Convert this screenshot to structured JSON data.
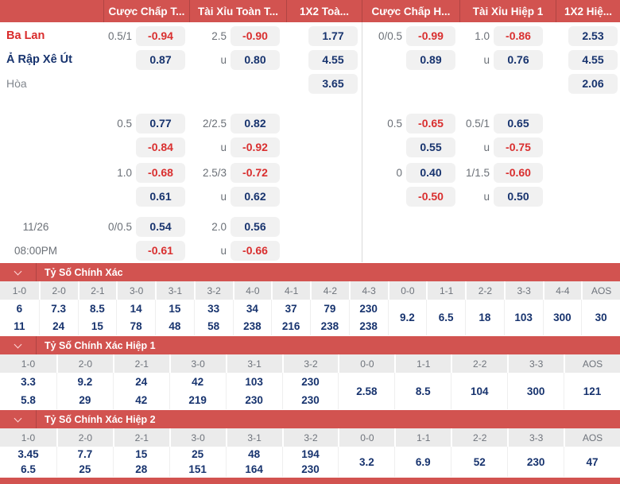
{
  "colors": {
    "accent_red": "#d25350",
    "odd_negative_red": "#d92f2f",
    "odd_positive_navy": "#17336e",
    "pill_background": "#f1f1f1"
  },
  "odds_header": {
    "columns": [
      {
        "label": "Cược Chấp T..."
      },
      {
        "label": "Tài Xỉu Toàn T..."
      },
      {
        "label": "1X2 Toà..."
      },
      {
        "label": "Cược Chấp H..."
      },
      {
        "label": "Tài Xỉu Hiệp 1"
      },
      {
        "label": "1X2 Hiệ..."
      }
    ]
  },
  "odds_rows": [
    {
      "gap": 2,
      "label": "Ba Lan",
      "labelType": "home",
      "cells": [
        {
          "line": "0.5/1",
          "odd": "-0.94"
        },
        {
          "line": "2.5",
          "odd": "-0.90"
        },
        {
          "odd": "1.77"
        },
        {
          "line": "0/0.5",
          "odd": "-0.99"
        },
        {
          "line": "1.0",
          "odd": "-0.86"
        },
        {
          "odd": "2.53"
        }
      ]
    },
    {
      "gap": 0,
      "label": "Ả Rập Xê Út",
      "labelType": "away",
      "cells": [
        {
          "odd": "0.87"
        },
        {
          "line": "u",
          "odd": "0.80"
        },
        {
          "odd": "4.55"
        },
        {
          "odd": "0.89"
        },
        {
          "line": "u",
          "odd": "0.76"
        },
        {
          "odd": "4.55"
        }
      ]
    },
    {
      "gap": 0,
      "label": "Hòa",
      "labelType": "draw",
      "cells": [
        {},
        {},
        {
          "odd": "3.65"
        },
        {},
        {},
        {
          "odd": "2.06"
        }
      ]
    },
    {
      "gap": 20,
      "label": "",
      "labelType": "none",
      "cells": [
        {
          "line": "0.5",
          "odd": "0.77"
        },
        {
          "line": "2/2.5",
          "odd": "0.82"
        },
        {},
        {
          "line": "0.5",
          "odd": "-0.65"
        },
        {
          "line": "0.5/1",
          "odd": "0.65"
        },
        {}
      ]
    },
    {
      "gap": 0,
      "label": "",
      "labelType": "none",
      "cells": [
        {
          "odd": "-0.84"
        },
        {
          "line": "u",
          "odd": "-0.92"
        },
        {},
        {
          "odd": "0.55"
        },
        {
          "line": "u",
          "odd": "-0.75"
        },
        {}
      ]
    },
    {
      "gap": 2,
      "label": "",
      "labelType": "none",
      "cells": [
        {
          "line": "1.0",
          "odd": "-0.68"
        },
        {
          "line": "2.5/3",
          "odd": "-0.72"
        },
        {},
        {
          "line": "0",
          "odd": "0.40"
        },
        {
          "line": "1/1.5",
          "odd": "-0.60"
        },
        {}
      ]
    },
    {
      "gap": 0,
      "label": "",
      "labelType": "none",
      "cells": [
        {
          "odd": "0.61"
        },
        {
          "line": "u",
          "odd": "0.62"
        },
        {},
        {
          "odd": "-0.50"
        },
        {
          "line": "u",
          "odd": "0.50"
        },
        {}
      ]
    },
    {
      "gap": 8,
      "label": "11/26",
      "labelType": "date",
      "cells": [
        {
          "line": "0/0.5",
          "odd": "0.54"
        },
        {
          "line": "2.0",
          "odd": "0.56"
        },
        {},
        {},
        {},
        {}
      ]
    },
    {
      "gap": 0,
      "label": "08:00PM",
      "labelType": "date",
      "cells": [
        {
          "odd": "-0.61"
        },
        {
          "line": "u",
          "odd": "-0.66"
        },
        {},
        {},
        {},
        {}
      ]
    }
  ],
  "score_sections": [
    {
      "title": "Tỷ Số Chính Xác",
      "columns": [
        {
          "score": "1-0",
          "values": [
            "6",
            "11"
          ]
        },
        {
          "score": "2-0",
          "values": [
            "7.3",
            "24"
          ]
        },
        {
          "score": "2-1",
          "values": [
            "8.5",
            "15"
          ]
        },
        {
          "score": "3-0",
          "values": [
            "14",
            "78"
          ]
        },
        {
          "score": "3-1",
          "values": [
            "15",
            "48"
          ]
        },
        {
          "score": "3-2",
          "values": [
            "33",
            "58"
          ]
        },
        {
          "score": "4-0",
          "values": [
            "34",
            "238"
          ]
        },
        {
          "score": "4-1",
          "values": [
            "37",
            "216"
          ]
        },
        {
          "score": "4-2",
          "values": [
            "79",
            "238"
          ]
        },
        {
          "score": "4-3",
          "values": [
            "230",
            "238"
          ]
        },
        {
          "score": "0-0",
          "values": [
            "9.2"
          ]
        },
        {
          "score": "1-1",
          "values": [
            "6.5"
          ]
        },
        {
          "score": "2-2",
          "values": [
            "18"
          ]
        },
        {
          "score": "3-3",
          "values": [
            "103"
          ]
        },
        {
          "score": "4-4",
          "values": [
            "300"
          ]
        },
        {
          "score": "AOS",
          "values": [
            "30"
          ]
        }
      ]
    },
    {
      "title": "Tỷ Số Chính Xác Hiệp 1",
      "columns": [
        {
          "score": "1-0",
          "values": [
            "3.3",
            "5.8"
          ]
        },
        {
          "score": "2-0",
          "values": [
            "9.2",
            "29"
          ]
        },
        {
          "score": "2-1",
          "values": [
            "24",
            "42"
          ]
        },
        {
          "score": "3-0",
          "values": [
            "42",
            "219"
          ]
        },
        {
          "score": "3-1",
          "values": [
            "103",
            "230"
          ]
        },
        {
          "score": "3-2",
          "values": [
            "230",
            "230"
          ]
        },
        {
          "score": "0-0",
          "values": [
            "2.58"
          ]
        },
        {
          "score": "1-1",
          "values": [
            "8.5"
          ]
        },
        {
          "score": "2-2",
          "values": [
            "104"
          ]
        },
        {
          "score": "3-3",
          "values": [
            "300"
          ]
        },
        {
          "score": "AOS",
          "values": [
            "121"
          ]
        }
      ]
    },
    {
      "title": "Tỷ Số Chính Xác Hiệp 2",
      "columns": [
        {
          "score": "1-0",
          "values": [
            "3.45",
            "6.5"
          ]
        },
        {
          "score": "2-0",
          "values": [
            "7.7",
            "25"
          ]
        },
        {
          "score": "2-1",
          "values": [
            "15",
            "28"
          ]
        },
        {
          "score": "3-0",
          "values": [
            "25",
            "151"
          ]
        },
        {
          "score": "3-1",
          "values": [
            "48",
            "164"
          ]
        },
        {
          "score": "3-2",
          "values": [
            "194",
            "230"
          ]
        },
        {
          "score": "0-0",
          "values": [
            "3.2"
          ]
        },
        {
          "score": "1-1",
          "values": [
            "6.9"
          ]
        },
        {
          "score": "2-2",
          "values": [
            "52"
          ]
        },
        {
          "score": "3-3",
          "values": [
            "230"
          ]
        },
        {
          "score": "AOS",
          "values": [
            "47"
          ]
        }
      ]
    }
  ]
}
